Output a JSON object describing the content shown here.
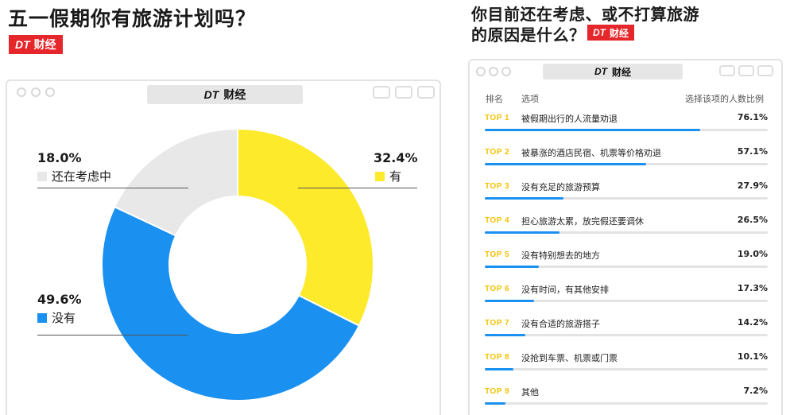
{
  "left_title": "五一假期你有旅游计划吗？",
  "right_title_line1": "你目前还在考虑、或不打算旅游",
  "right_title_line2": "的原因是什么？",
  "brand": {
    "dt": "DT",
    "name": "财经"
  },
  "colors": {
    "yes": "#fcea2b",
    "no": "#1a90f0",
    "considering": "#e8e8e8",
    "brand_red": "#e5262a"
  },
  "chart_data": [
    {
      "type": "pie",
      "title": "五一假期你有旅游计划吗？",
      "unit": "%",
      "slices": [
        {
          "label": "有",
          "value": 32.4,
          "value_label": "32.4%",
          "color": "#fcea2b"
        },
        {
          "label": "没有",
          "value": 49.6,
          "value_label": "49.6%",
          "color": "#1a90f0"
        },
        {
          "label": "还在考虑中",
          "value": 18.0,
          "value_label": "18.0%",
          "color": "#e8e8e8"
        }
      ]
    },
    {
      "type": "table",
      "title": "你目前还在考虑、或不打算旅游的原因是什么？",
      "columns": [
        "排名",
        "选项",
        "选择该项的人数比例"
      ],
      "unit": "%",
      "rows": [
        {
          "rank": "TOP 1",
          "option": "被假期出行的人流量劝退",
          "value": 76.1,
          "value_label": "76.1%"
        },
        {
          "rank": "TOP 2",
          "option": "被暴涨的酒店民宿、机票等价格劝退",
          "value": 57.1,
          "value_label": "57.1%"
        },
        {
          "rank": "TOP 3",
          "option": "没有充足的旅游预算",
          "value": 27.9,
          "value_label": "27.9%"
        },
        {
          "rank": "TOP 4",
          "option": "担心旅游太累，放完假还要调休",
          "value": 26.5,
          "value_label": "26.5%"
        },
        {
          "rank": "TOP 5",
          "option": "没有特别想去的地方",
          "value": 19.0,
          "value_label": "19.0%"
        },
        {
          "rank": "TOP 6",
          "option": "没有时间，有其他安排",
          "value": 17.3,
          "value_label": "17.3%"
        },
        {
          "rank": "TOP 7",
          "option": "没有合适的旅游搭子",
          "value": 14.2,
          "value_label": "14.2%"
        },
        {
          "rank": "TOP 8",
          "option": "没抢到车票、机票或门票",
          "value": 10.1,
          "value_label": "10.1%"
        },
        {
          "rank": "TOP 9",
          "option": "其他",
          "value": 7.2,
          "value_label": "7.2%"
        }
      ]
    }
  ]
}
